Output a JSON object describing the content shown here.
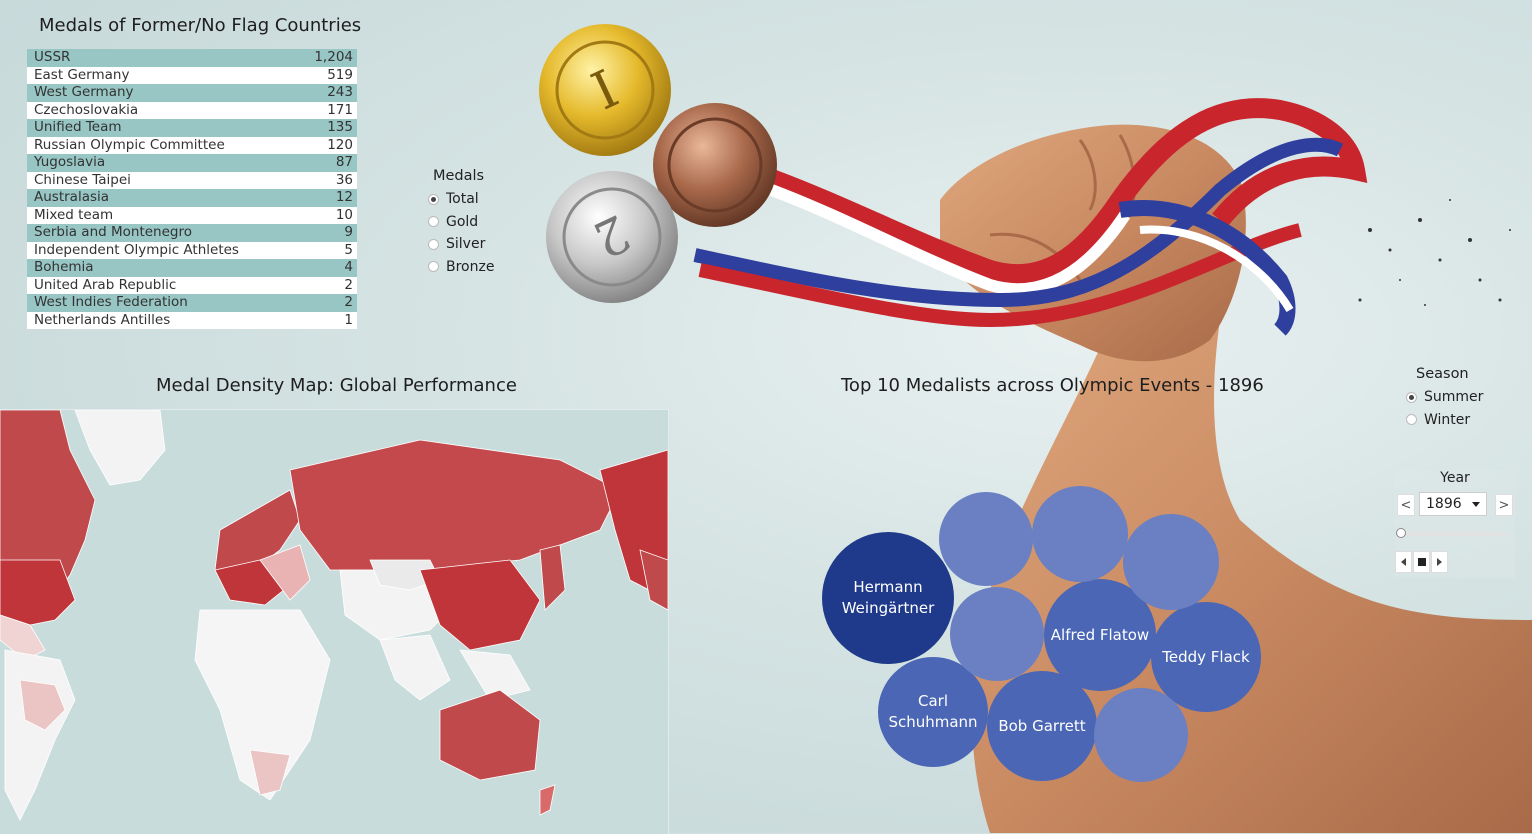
{
  "former_countries": {
    "title": "Medals of Former/No Flag Countries",
    "rows": [
      {
        "name": "USSR",
        "value": "1,204"
      },
      {
        "name": "East Germany",
        "value": "519"
      },
      {
        "name": "West Germany",
        "value": "243"
      },
      {
        "name": "Czechoslovakia",
        "value": "171"
      },
      {
        "name": "Unified Team",
        "value": "135"
      },
      {
        "name": "Russian Olympic Committee",
        "value": "120"
      },
      {
        "name": "Yugoslavia",
        "value": "87"
      },
      {
        "name": "Chinese Taipei",
        "value": "36"
      },
      {
        "name": "Australasia",
        "value": "12"
      },
      {
        "name": "Mixed team",
        "value": "10"
      },
      {
        "name": "Serbia and Montenegro",
        "value": "9"
      },
      {
        "name": "Independent Olympic Athletes",
        "value": "5"
      },
      {
        "name": "Bohemia",
        "value": "4"
      },
      {
        "name": "United Arab Republic",
        "value": "2"
      },
      {
        "name": "West Indies Federation",
        "value": "2"
      },
      {
        "name": "Netherlands Antilles",
        "value": "1"
      }
    ]
  },
  "medals_filter": {
    "title": "Medals",
    "options": [
      "Total",
      "Gold",
      "Silver",
      "Bronze"
    ],
    "selected": "Total"
  },
  "map": {
    "title": "Medal Density Map: Global Performance"
  },
  "medalists": {
    "title": "Top 10 Medalists across Olympic Events -  1896",
    "bubbles": [
      {
        "label": "Hermann Weingärtner",
        "color": "#1f3a8a"
      },
      {
        "label": "Alfred Flatow",
        "color": "#4a66b5"
      },
      {
        "label": "Teddy Flack",
        "color": "#4a66b5"
      },
      {
        "label": "Carl Schuhmann",
        "color": "#4a66b5"
      },
      {
        "label": "Bob Garrett",
        "color": "#4a66b5"
      },
      {
        "label": "",
        "color": "#6a80c2"
      },
      {
        "label": "",
        "color": "#6a80c2"
      },
      {
        "label": "",
        "color": "#6a80c2"
      },
      {
        "label": "",
        "color": "#6a80c2"
      },
      {
        "label": "",
        "color": "#6a80c2"
      }
    ]
  },
  "season_filter": {
    "title": "Season",
    "options": [
      "Summer",
      "Winter"
    ],
    "selected": "Summer"
  },
  "year_filter": {
    "title": "Year",
    "value": "1896",
    "prev_icon": "<",
    "next_icon": ">"
  },
  "colors": {
    "table_band": "#97c6c4",
    "map_high": "#c0353a",
    "map_mid": "#d96a6a",
    "map_low": "#f0d3d3",
    "bubble_top": "#1f3a8a",
    "bubble_main": "#4a66b5"
  }
}
